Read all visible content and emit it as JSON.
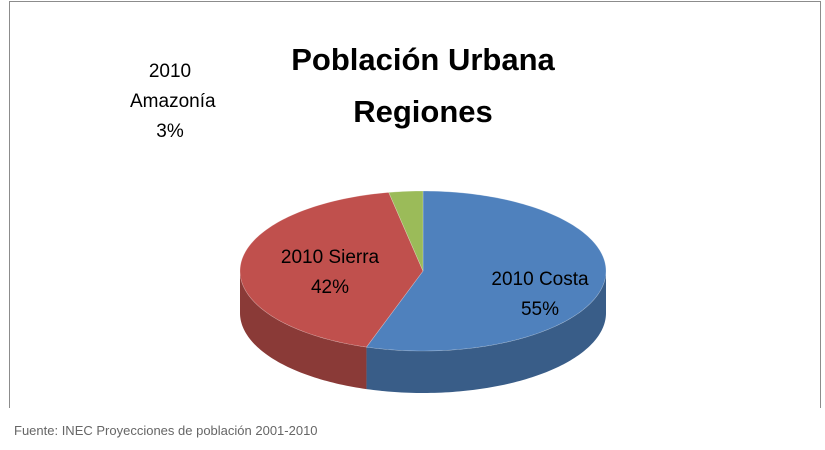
{
  "chart_data": {
    "type": "pie",
    "title": "Población Urbana Regiones",
    "categories": [
      "2010 Costa",
      "2010 Sierra",
      "2010 Amazonía"
    ],
    "values": [
      55,
      42,
      3
    ],
    "value_labels": [
      "55%",
      "42%",
      "3%"
    ],
    "colors": [
      "#4f81bd",
      "#c0504d",
      "#9bbb59"
    ],
    "source": "Fuente: INEC Proyecciones de población 2001-2010"
  }
}
